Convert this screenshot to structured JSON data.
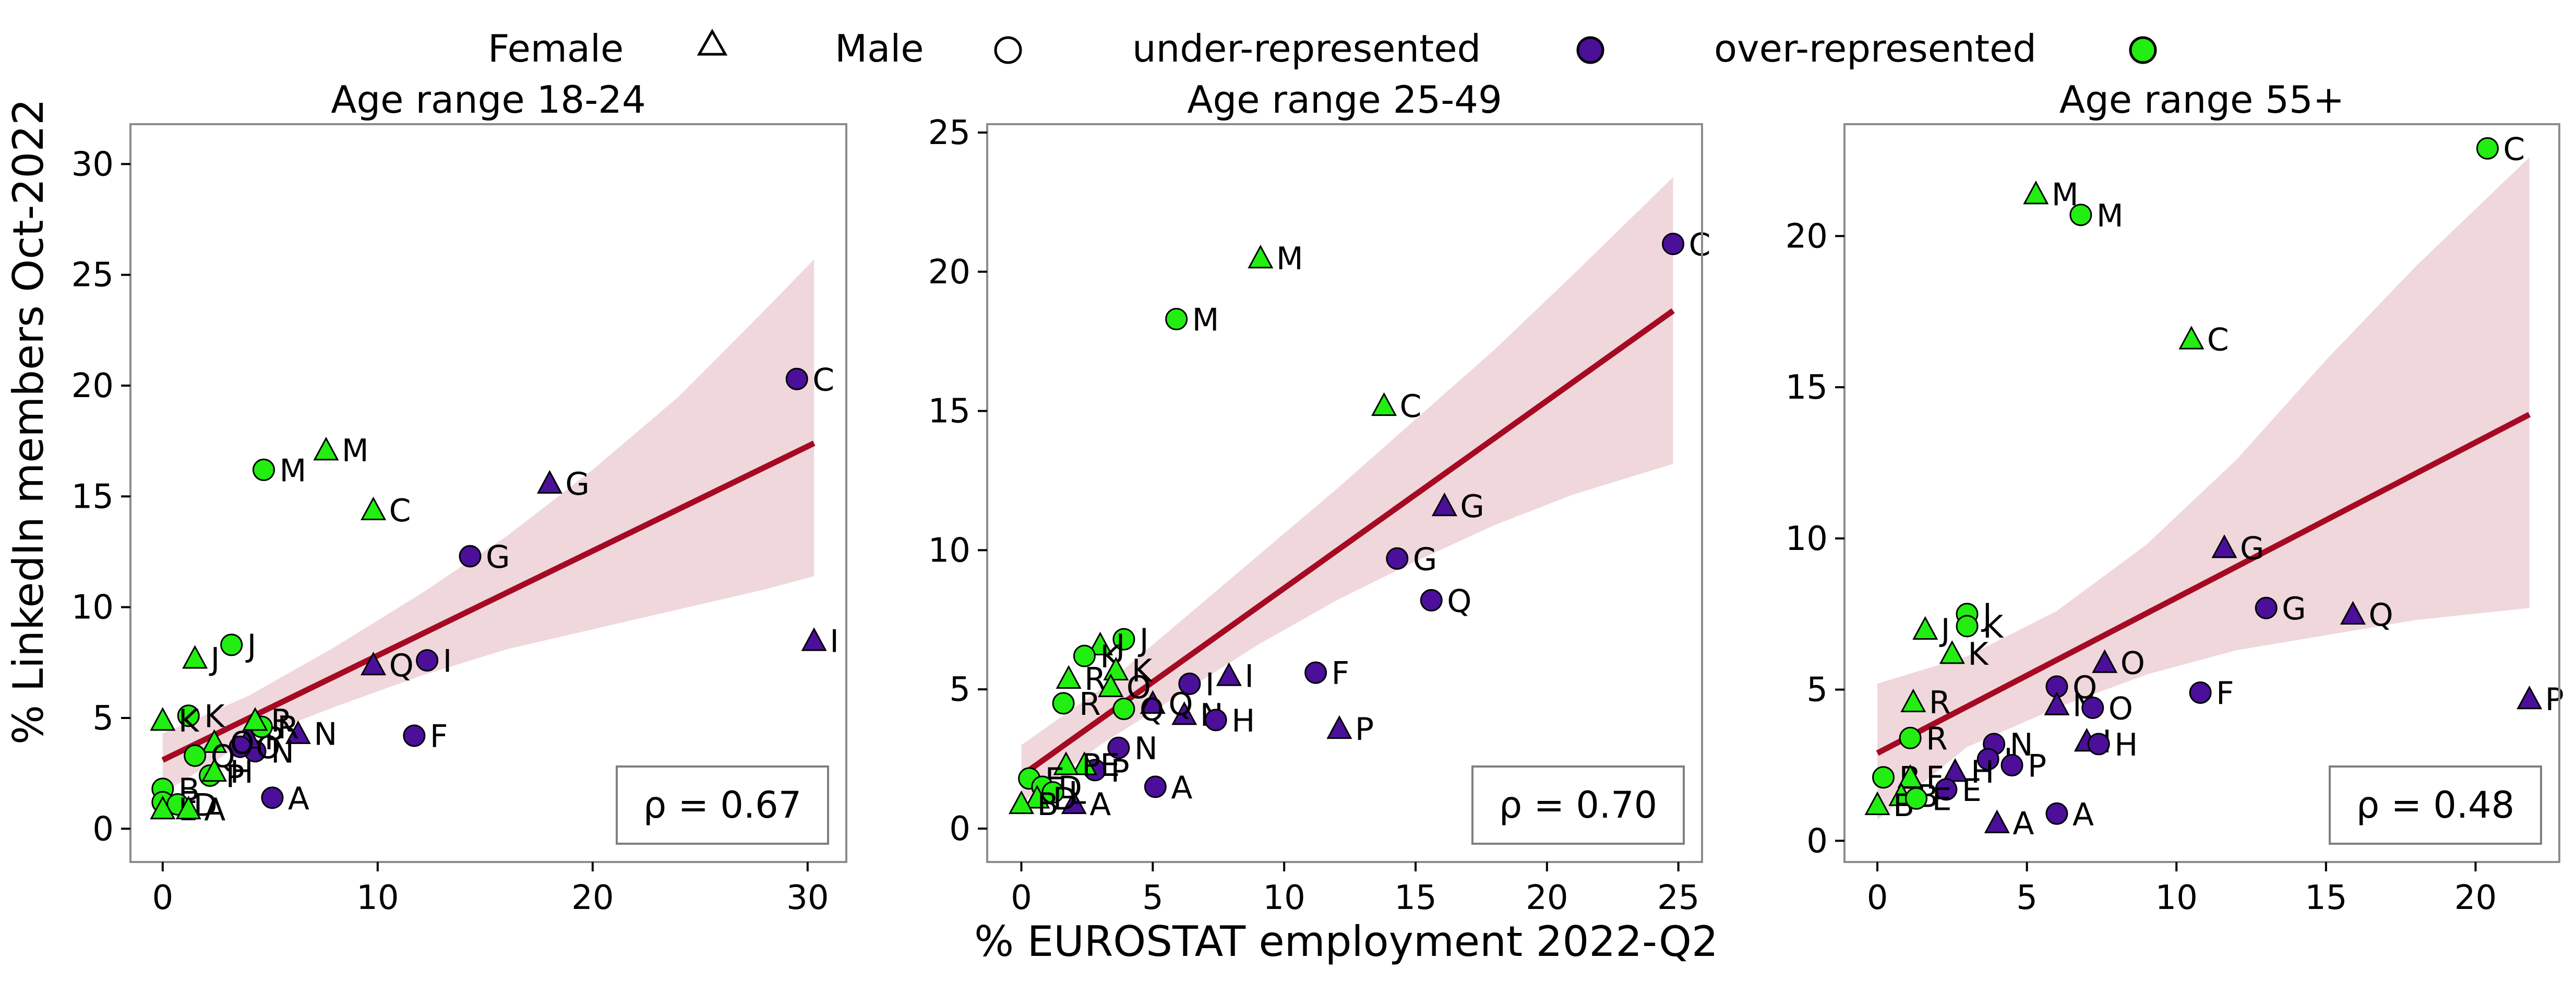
{
  "figure": {
    "xlabel": "% EUROSTAT employment 2022-Q2",
    "ylabel": "% LinkedIn members Oct-2022"
  },
  "legend": {
    "placement": "top-center",
    "items": [
      {
        "label": "Female",
        "marker": "triangle-outline"
      },
      {
        "label": "Male",
        "marker": "circle-outline"
      },
      {
        "label": "under-represented",
        "marker": "circle",
        "color": "#4b0f99"
      },
      {
        "label": "over-represented",
        "marker": "circle",
        "color": "#22ee11"
      }
    ]
  },
  "colors": {
    "under": "#4b0f99",
    "over": "#22ee11",
    "fit_line": "#a50a22",
    "ci_band": "#efd7db",
    "axes_frame": "#8c8c8c"
  },
  "chart_data": [
    {
      "type": "scatter",
      "title": "Age range 18-24",
      "xlim": [
        -1.5,
        31.8
      ],
      "ylim": [
        -1.5,
        31.8
      ],
      "xticks": [
        0,
        10,
        20,
        30
      ],
      "yticks": [
        0,
        5,
        10,
        15,
        20,
        25,
        30
      ],
      "rho_label": "ρ = 0.67",
      "fit": {
        "x": [
          0,
          30.3
        ],
        "y": [
          3.1,
          17.4
        ]
      },
      "ci_band": {
        "x": [
          0,
          4,
          8,
          12,
          16,
          20,
          24,
          28,
          30.3
        ],
        "upper": [
          4.3,
          6.0,
          8.2,
          10.6,
          13.2,
          16.2,
          19.5,
          23.4,
          25.7
        ],
        "lower": [
          1.6,
          4.0,
          5.5,
          6.9,
          8.1,
          9.0,
          9.9,
          10.8,
          11.4
        ]
      },
      "points": [
        {
          "x": 29.5,
          "y": 20.3,
          "sex": "male",
          "group": "under",
          "label": "C"
        },
        {
          "x": 18.0,
          "y": 15.6,
          "sex": "female",
          "group": "under",
          "label": "G"
        },
        {
          "x": 14.3,
          "y": 12.3,
          "sex": "male",
          "group": "under",
          "label": "G"
        },
        {
          "x": 30.3,
          "y": 8.5,
          "sex": "female",
          "group": "under",
          "label": "I"
        },
        {
          "x": 12.3,
          "y": 7.6,
          "sex": "male",
          "group": "under",
          "label": "I"
        },
        {
          "x": 9.8,
          "y": 7.4,
          "sex": "female",
          "group": "under",
          "label": "Q"
        },
        {
          "x": 11.7,
          "y": 4.2,
          "sex": "male",
          "group": "under",
          "label": "F"
        },
        {
          "x": 5.1,
          "y": 1.4,
          "sex": "male",
          "group": "under",
          "label": "A"
        },
        {
          "x": 6.3,
          "y": 4.3,
          "sex": "female",
          "group": "under",
          "label": "N"
        },
        {
          "x": 4.3,
          "y": 3.5,
          "sex": "male",
          "group": "under",
          "label": "N"
        },
        {
          "x": 4.0,
          "y": 4.1,
          "sex": "female",
          "group": "under",
          "label": "P"
        },
        {
          "x": 3.6,
          "y": 3.7,
          "sex": "male",
          "group": "under",
          "label": "O"
        },
        {
          "x": 7.6,
          "y": 17.1,
          "sex": "female",
          "group": "over",
          "label": "M"
        },
        {
          "x": 4.7,
          "y": 16.2,
          "sex": "male",
          "group": "over",
          "label": "M"
        },
        {
          "x": 9.8,
          "y": 14.4,
          "sex": "female",
          "group": "over",
          "label": "C"
        },
        {
          "x": 3.2,
          "y": 8.3,
          "sex": "male",
          "group": "over",
          "label": "J"
        },
        {
          "x": 1.5,
          "y": 7.7,
          "sex": "female",
          "group": "over",
          "label": "J"
        },
        {
          "x": 1.2,
          "y": 5.1,
          "sex": "male",
          "group": "over",
          "label": "K"
        },
        {
          "x": 0.0,
          "y": 4.9,
          "sex": "female",
          "group": "over",
          "label": "K"
        },
        {
          "x": 4.6,
          "y": 4.6,
          "sex": "male",
          "group": "over",
          "label": "R"
        },
        {
          "x": 4.3,
          "y": 4.9,
          "sex": "female",
          "group": "over",
          "label": "R"
        },
        {
          "x": 2.4,
          "y": 3.9,
          "sex": "female",
          "group": "over",
          "label": "O"
        },
        {
          "x": 1.5,
          "y": 3.3,
          "sex": "male",
          "group": "over",
          "label": "Q"
        },
        {
          "x": 2.2,
          "y": 2.4,
          "sex": "male",
          "group": "over",
          "label": "P"
        },
        {
          "x": 2.4,
          "y": 2.6,
          "sex": "female",
          "group": "over",
          "label": "H"
        },
        {
          "x": 0.0,
          "y": 1.8,
          "sex": "male",
          "group": "over",
          "label": "B"
        },
        {
          "x": 0.0,
          "y": 1.2,
          "sex": "male",
          "group": "over",
          "label": "E"
        },
        {
          "x": 0.7,
          "y": 1.1,
          "sex": "male",
          "group": "over",
          "label": "D"
        },
        {
          "x": 0.0,
          "y": 0.9,
          "sex": "female",
          "group": "over",
          "label": "L"
        },
        {
          "x": 1.2,
          "y": 0.9,
          "sex": "female",
          "group": "over",
          "label": "A"
        }
      ]
    },
    {
      "type": "scatter",
      "title": "Age range 25-49",
      "xlim": [
        -1.3,
        25.9
      ],
      "ylim": [
        -1.2,
        25.3
      ],
      "xticks": [
        0,
        5,
        10,
        15,
        20,
        25
      ],
      "yticks": [
        0,
        5,
        10,
        15,
        20,
        25
      ],
      "rho_label": "ρ = 0.70",
      "fit": {
        "x": [
          0,
          24.8
        ],
        "y": [
          1.9,
          18.6
        ]
      },
      "ci_band": {
        "x": [
          0,
          3,
          6,
          9,
          12,
          15,
          18,
          21,
          24.8
        ],
        "upper": [
          3.0,
          5.0,
          7.4,
          9.8,
          12.2,
          14.7,
          17.2,
          19.9,
          23.4
        ],
        "lower": [
          0.9,
          3.0,
          4.8,
          6.6,
          8.2,
          9.6,
          10.9,
          12.0,
          13.1
        ]
      },
      "points": [
        {
          "x": 24.8,
          "y": 21.0,
          "sex": "male",
          "group": "under",
          "label": "C"
        },
        {
          "x": 16.1,
          "y": 11.6,
          "sex": "female",
          "group": "under",
          "label": "G"
        },
        {
          "x": 14.3,
          "y": 9.7,
          "sex": "male",
          "group": "under",
          "label": "G"
        },
        {
          "x": 15.6,
          "y": 8.2,
          "sex": "male",
          "group": "under",
          "label": "Q"
        },
        {
          "x": 11.2,
          "y": 5.6,
          "sex": "male",
          "group": "under",
          "label": "F"
        },
        {
          "x": 7.9,
          "y": 5.5,
          "sex": "female",
          "group": "under",
          "label": "I"
        },
        {
          "x": 6.4,
          "y": 5.2,
          "sex": "male",
          "group": "under",
          "label": "I"
        },
        {
          "x": 6.2,
          "y": 4.1,
          "sex": "female",
          "group": "under",
          "label": "N"
        },
        {
          "x": 7.4,
          "y": 3.9,
          "sex": "male",
          "group": "under",
          "label": "H"
        },
        {
          "x": 12.1,
          "y": 3.6,
          "sex": "female",
          "group": "under",
          "label": "P"
        },
        {
          "x": 3.7,
          "y": 2.9,
          "sex": "male",
          "group": "under",
          "label": "N"
        },
        {
          "x": 5.1,
          "y": 1.5,
          "sex": "male",
          "group": "under",
          "label": "A"
        },
        {
          "x": 2.0,
          "y": 0.9,
          "sex": "female",
          "group": "under",
          "label": "A"
        },
        {
          "x": 5.0,
          "y": 4.5,
          "sex": "female",
          "group": "under",
          "label": "Q"
        },
        {
          "x": 2.8,
          "y": 2.1,
          "sex": "male",
          "group": "under",
          "label": "P"
        },
        {
          "x": 9.1,
          "y": 20.5,
          "sex": "female",
          "group": "over",
          "label": "M"
        },
        {
          "x": 5.9,
          "y": 18.3,
          "sex": "male",
          "group": "over",
          "label": "M"
        },
        {
          "x": 13.8,
          "y": 15.2,
          "sex": "female",
          "group": "over",
          "label": "C"
        },
        {
          "x": 3.9,
          "y": 6.8,
          "sex": "male",
          "group": "over",
          "label": "J"
        },
        {
          "x": 3.0,
          "y": 6.6,
          "sex": "female",
          "group": "over",
          "label": "J"
        },
        {
          "x": 2.4,
          "y": 6.2,
          "sex": "male",
          "group": "over",
          "label": "K"
        },
        {
          "x": 3.6,
          "y": 5.7,
          "sex": "female",
          "group": "over",
          "label": "K"
        },
        {
          "x": 1.8,
          "y": 5.4,
          "sex": "female",
          "group": "over",
          "label": "R"
        },
        {
          "x": 1.6,
          "y": 4.5,
          "sex": "male",
          "group": "over",
          "label": "R"
        },
        {
          "x": 3.4,
          "y": 5.1,
          "sex": "female",
          "group": "over",
          "label": "O"
        },
        {
          "x": 3.9,
          "y": 4.3,
          "sex": "male",
          "group": "over",
          "label": "Q"
        },
        {
          "x": 2.4,
          "y": 2.3,
          "sex": "female",
          "group": "over",
          "label": "E"
        },
        {
          "x": 1.7,
          "y": 2.3,
          "sex": "female",
          "group": "over",
          "label": "P"
        },
        {
          "x": 0.3,
          "y": 1.8,
          "sex": "male",
          "group": "over",
          "label": "E"
        },
        {
          "x": 0.8,
          "y": 1.5,
          "sex": "male",
          "group": "over",
          "label": "D"
        },
        {
          "x": 1.2,
          "y": 1.3,
          "sex": "male",
          "group": "over",
          "label": "L"
        },
        {
          "x": 0.6,
          "y": 1.1,
          "sex": "female",
          "group": "over",
          "label": "D"
        },
        {
          "x": 0.0,
          "y": 0.9,
          "sex": "female",
          "group": "over",
          "label": "B"
        }
      ]
    },
    {
      "type": "scatter",
      "title": "Age range 55+",
      "xlim": [
        -1.1,
        22.8
      ],
      "ylim": [
        -0.7,
        23.7
      ],
      "xticks": [
        0,
        5,
        10,
        15,
        20
      ],
      "yticks": [
        0,
        5,
        10,
        15,
        20
      ],
      "rho_label": "ρ = 0.48",
      "fit": {
        "x": [
          0,
          21.8
        ],
        "y": [
          2.9,
          14.1
        ]
      },
      "ci_band": {
        "x": [
          0,
          3,
          6,
          9,
          12,
          15,
          18,
          21.8
        ],
        "upper": [
          5.2,
          6.1,
          7.6,
          9.8,
          12.6,
          15.9,
          19.0,
          22.6
        ],
        "lower": [
          0.7,
          3.1,
          4.4,
          5.5,
          6.3,
          6.8,
          7.3,
          7.7
        ]
      },
      "points": [
        {
          "x": 20.4,
          "y": 22.9,
          "sex": "male",
          "group": "over",
          "label": "C"
        },
        {
          "x": 5.3,
          "y": 21.4,
          "sex": "female",
          "group": "over",
          "label": "M"
        },
        {
          "x": 6.8,
          "y": 20.7,
          "sex": "male",
          "group": "over",
          "label": "M"
        },
        {
          "x": 10.5,
          "y": 16.6,
          "sex": "female",
          "group": "over",
          "label": "C"
        },
        {
          "x": 11.6,
          "y": 9.7,
          "sex": "female",
          "group": "under",
          "label": "G"
        },
        {
          "x": 13.0,
          "y": 7.7,
          "sex": "male",
          "group": "under",
          "label": "G"
        },
        {
          "x": 15.9,
          "y": 7.5,
          "sex": "female",
          "group": "under",
          "label": "Q"
        },
        {
          "x": 3.0,
          "y": 7.5,
          "sex": "male",
          "group": "over",
          "label": "J"
        },
        {
          "x": 3.0,
          "y": 7.1,
          "sex": "male",
          "group": "over",
          "label": "K"
        },
        {
          "x": 1.6,
          "y": 7.0,
          "sex": "female",
          "group": "over",
          "label": "J"
        },
        {
          "x": 2.5,
          "y": 6.2,
          "sex": "female",
          "group": "over",
          "label": "K"
        },
        {
          "x": 7.6,
          "y": 5.9,
          "sex": "female",
          "group": "under",
          "label": "O"
        },
        {
          "x": 6.0,
          "y": 5.1,
          "sex": "male",
          "group": "under",
          "label": "Q"
        },
        {
          "x": 10.8,
          "y": 4.9,
          "sex": "male",
          "group": "under",
          "label": "F"
        },
        {
          "x": 21.8,
          "y": 4.7,
          "sex": "female",
          "group": "under",
          "label": "P"
        },
        {
          "x": 1.2,
          "y": 4.6,
          "sex": "female",
          "group": "over",
          "label": "R"
        },
        {
          "x": 6.0,
          "y": 4.5,
          "sex": "female",
          "group": "under",
          "label": "N"
        },
        {
          "x": 7.2,
          "y": 4.4,
          "sex": "male",
          "group": "under",
          "label": "O"
        },
        {
          "x": 1.1,
          "y": 3.4,
          "sex": "male",
          "group": "over",
          "label": "R"
        },
        {
          "x": 7.0,
          "y": 3.3,
          "sex": "female",
          "group": "under",
          "label": "I"
        },
        {
          "x": 7.4,
          "y": 3.2,
          "sex": "male",
          "group": "under",
          "label": "H"
        },
        {
          "x": 3.9,
          "y": 3.2,
          "sex": "male",
          "group": "under",
          "label": "N"
        },
        {
          "x": 3.7,
          "y": 2.7,
          "sex": "male",
          "group": "under",
          "label": "I"
        },
        {
          "x": 4.5,
          "y": 2.5,
          "sex": "male",
          "group": "under",
          "label": "P"
        },
        {
          "x": 2.6,
          "y": 2.3,
          "sex": "female",
          "group": "under",
          "label": "H"
        },
        {
          "x": 0.2,
          "y": 2.1,
          "sex": "male",
          "group": "over",
          "label": "B"
        },
        {
          "x": 1.1,
          "y": 2.1,
          "sex": "female",
          "group": "over",
          "label": "F"
        },
        {
          "x": 2.3,
          "y": 1.7,
          "sex": "male",
          "group": "under",
          "label": "E"
        },
        {
          "x": 0.8,
          "y": 1.5,
          "sex": "female",
          "group": "over",
          "label": "B"
        },
        {
          "x": 0.0,
          "y": 1.2,
          "sex": "female",
          "group": "over",
          "label": "B"
        },
        {
          "x": 1.3,
          "y": 1.4,
          "sex": "male",
          "group": "over",
          "label": "E"
        },
        {
          "x": 6.0,
          "y": 0.9,
          "sex": "male",
          "group": "under",
          "label": "A"
        },
        {
          "x": 4.0,
          "y": 0.6,
          "sex": "female",
          "group": "under",
          "label": "A"
        }
      ]
    }
  ]
}
